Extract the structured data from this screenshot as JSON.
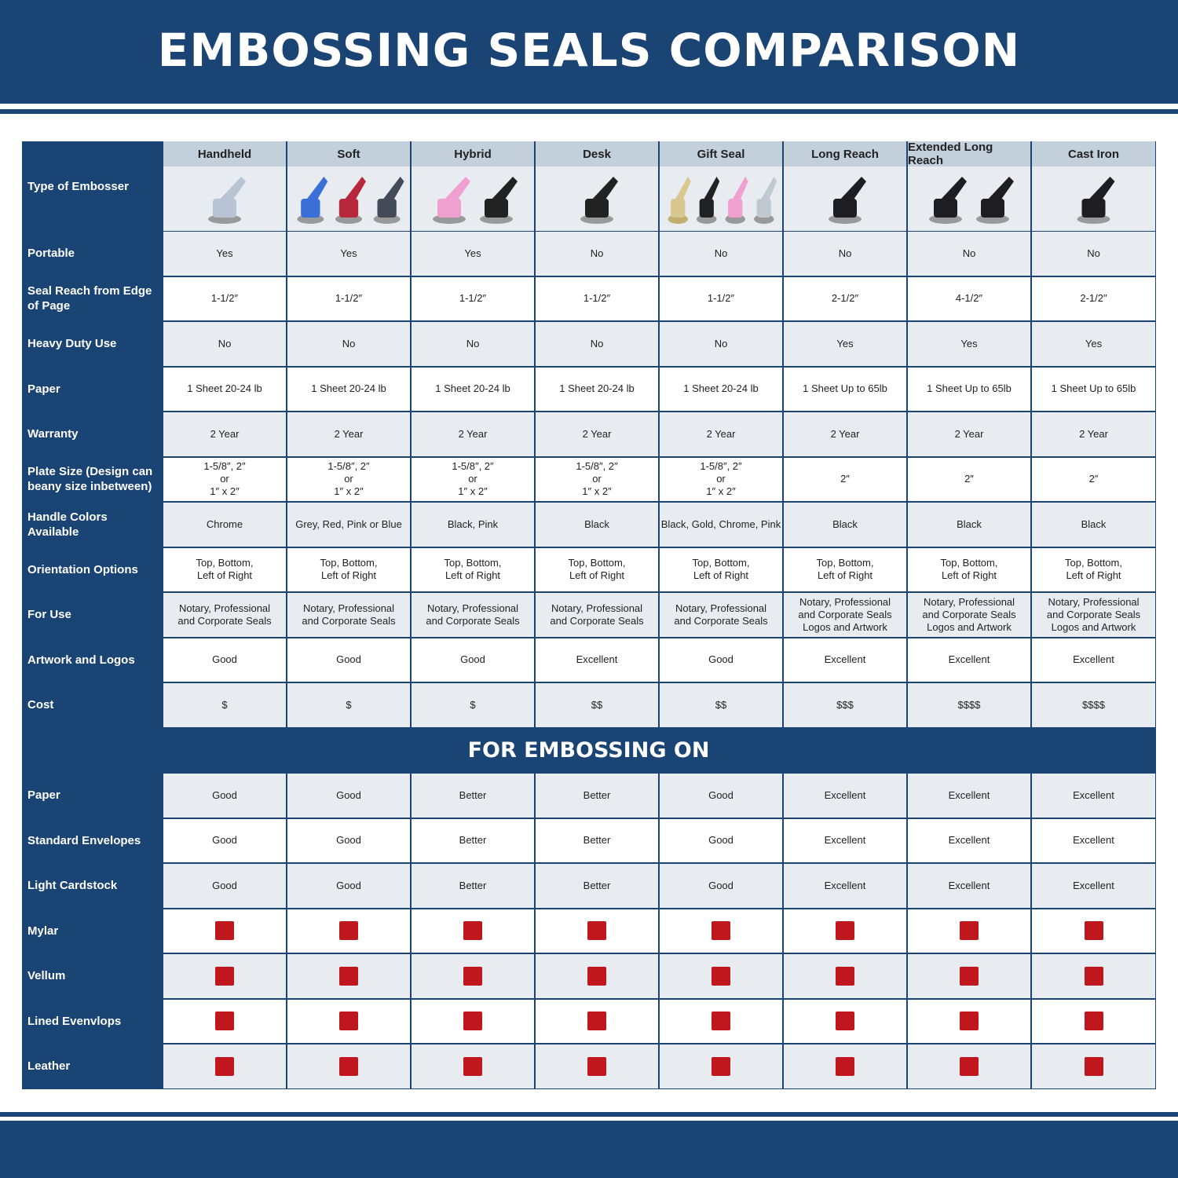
{
  "title": "EMBOSSING SEALS COMPARISON",
  "type_label": "Type of Embosser",
  "columns": [
    {
      "name": "Handheld",
      "image": "chrome-handheld-embosser",
      "colors": [
        "#b8c4d4"
      ]
    },
    {
      "name": "Soft",
      "image": "soft-embossers",
      "colors": [
        "#3a6fd8",
        "#b8283c",
        "#444a58"
      ]
    },
    {
      "name": "Hybrid",
      "image": "hybrid-embossers",
      "colors": [
        "#f0a0d0",
        "#222222"
      ]
    },
    {
      "name": "Desk",
      "image": "desk-embosser",
      "colors": [
        "#222222"
      ]
    },
    {
      "name": "Gift Seal",
      "image": "gift-seal-embossers",
      "colors": [
        "#d8c890",
        "#222222",
        "#f0a0d0",
        "#c0c8d0"
      ]
    },
    {
      "name": "Long Reach",
      "image": "long-reach-embosser",
      "colors": [
        "#1e1e22"
      ]
    },
    {
      "name": "Extended Long Reach",
      "image": "extended-long-reach-embossers",
      "colors": [
        "#1e1e22",
        "#1e1e22"
      ]
    },
    {
      "name": "Cast Iron",
      "image": "cast-iron-embosser",
      "colors": [
        "#1e1e22"
      ]
    }
  ],
  "rows": [
    {
      "label": "Portable",
      "values": [
        "Yes",
        "Yes",
        "Yes",
        "No",
        "No",
        "No",
        "No",
        "No"
      ]
    },
    {
      "label": "Seal Reach from Edge of Page",
      "values": [
        "1-1/2″",
        "1-1/2″",
        "1-1/2″",
        "1-1/2″",
        "1-1/2″",
        "2-1/2″",
        "4-1/2″",
        "2-1/2″"
      ]
    },
    {
      "label": "Heavy Duty Use",
      "values": [
        "No",
        "No",
        "No",
        "No",
        "No",
        "Yes",
        "Yes",
        "Yes"
      ]
    },
    {
      "label": "Paper",
      "values": [
        "1 Sheet 20-24 lb",
        "1 Sheet 20-24 lb",
        "1 Sheet 20-24 lb",
        "1 Sheet 20-24 lb",
        "1 Sheet 20-24 lb",
        "1 Sheet Up to 65lb",
        "1 Sheet Up to 65lb",
        "1 Sheet Up to 65lb"
      ]
    },
    {
      "label": "Warranty",
      "values": [
        "2 Year",
        "2 Year",
        "2 Year",
        "2 Year",
        "2 Year",
        "2 Year",
        "2 Year",
        "2 Year"
      ]
    },
    {
      "label": "Plate Size (Design can beany size inbetween)",
      "values": [
        "1-5/8″, 2″\nor\n1″ x 2″",
        "1-5/8″, 2″\nor\n1″ x 2″",
        "1-5/8″, 2″\nor\n1″ x 2″",
        "1-5/8″, 2″\nor\n1″ x 2″",
        "1-5/8″, 2″\nor\n1″ x 2″",
        "2″",
        "2″",
        "2″"
      ]
    },
    {
      "label": "Handle Colors Available",
      "values": [
        "Chrome",
        "Grey, Red, Pink or Blue",
        "Black, Pink",
        "Black",
        "Black, Gold, Chrome, Pink",
        "Black",
        "Black",
        "Black"
      ]
    },
    {
      "label": "Orientation Options",
      "values": [
        "Top, Bottom,\nLeft of Right",
        "Top, Bottom,\nLeft of Right",
        "Top, Bottom,\nLeft of Right",
        "Top, Bottom,\nLeft of Right",
        "Top, Bottom,\nLeft of Right",
        "Top, Bottom,\nLeft of Right",
        "Top, Bottom,\nLeft of Right",
        "Top, Bottom,\nLeft of Right"
      ]
    },
    {
      "label": "For Use",
      "values": [
        "Notary, Professional\nand Corporate Seals",
        "Notary, Professional\nand Corporate Seals",
        "Notary, Professional\nand Corporate Seals",
        "Notary, Professional\nand Corporate Seals",
        "Notary, Professional\nand Corporate Seals",
        "Notary, Professional\nand Corporate Seals\nLogos and Artwork",
        "Notary, Professional\nand Corporate Seals\nLogos and Artwork",
        "Notary, Professional\nand Corporate Seals\nLogos and Artwork"
      ]
    },
    {
      "label": "Artwork and Logos",
      "values": [
        "Good",
        "Good",
        "Good",
        "Excellent",
        "Good",
        "Excellent",
        "Excellent",
        "Excellent"
      ]
    },
    {
      "label": "Cost",
      "values": [
        "$",
        "$",
        "$",
        "$$",
        "$$",
        "$$$",
        "$$$$",
        "$$$$"
      ]
    }
  ],
  "section_title": "FOR EMBOSSING ON",
  "emboss_rows": [
    {
      "label": "Paper",
      "values": [
        "Good",
        "Good",
        "Better",
        "Better",
        "Good",
        "Excellent",
        "Excellent",
        "Excellent"
      ]
    },
    {
      "label": "Standard Envelopes",
      "values": [
        "Good",
        "Good",
        "Better",
        "Better",
        "Good",
        "Excellent",
        "Excellent",
        "Excellent"
      ]
    },
    {
      "label": "Light Cardstock",
      "values": [
        "Good",
        "Good",
        "Better",
        "Better",
        "Good",
        "Excellent",
        "Excellent",
        "Excellent"
      ]
    },
    {
      "label": "Mylar",
      "values": [
        "x-icon",
        "x-icon",
        "x-icon",
        "x-icon",
        "x-icon",
        "x-icon",
        "x-icon",
        "x-icon"
      ]
    },
    {
      "label": "Vellum",
      "values": [
        "x-icon",
        "x-icon",
        "x-icon",
        "x-icon",
        "x-icon",
        "x-icon",
        "x-icon",
        "x-icon"
      ]
    },
    {
      "label": "Lined Evenvlops",
      "values": [
        "x-icon",
        "x-icon",
        "x-icon",
        "x-icon",
        "x-icon",
        "x-icon",
        "x-icon",
        "x-icon"
      ]
    },
    {
      "label": "Leather",
      "values": [
        "x-icon",
        "x-icon",
        "x-icon",
        "x-icon",
        "x-icon",
        "x-icon",
        "x-icon",
        "x-icon"
      ]
    }
  ],
  "colors": {
    "brand": "#1a4474",
    "row_alt": "#e8ecf0",
    "header": "#c3cfdb",
    "x_icon": "#c0161e"
  }
}
